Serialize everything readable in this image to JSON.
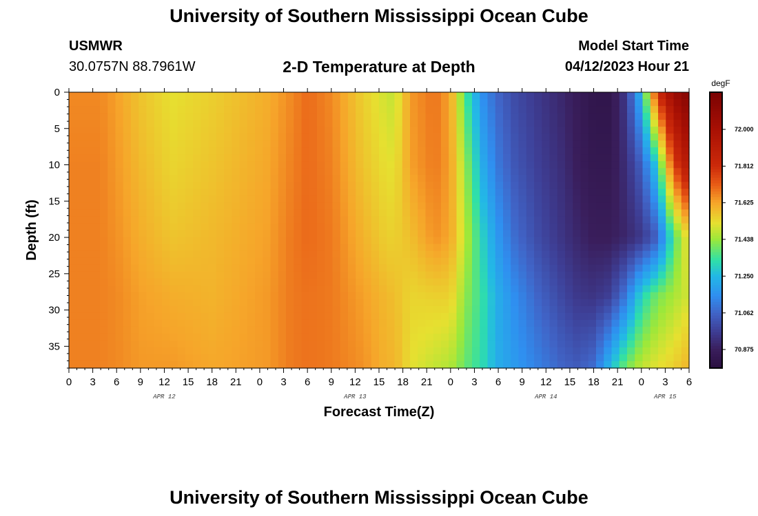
{
  "header": {
    "title": "University of Southern Mississippi Ocean Cube",
    "station": "USMWR",
    "coords": "30.0757N  88.7961W",
    "subtitle": "2-D Temperature at Depth",
    "run_label": "Model Start Time",
    "run_time": "04/12/2023 Hour 21"
  },
  "footer": {
    "title": "University of Southern Mississippi Ocean Cube"
  },
  "chart_data": {
    "type": "heatmap",
    "title": "2-D Temperature at Depth",
    "xlabel": "Forecast Time(Z)",
    "ylabel": "Depth (ft)",
    "x_range_hours": [
      0,
      78
    ],
    "y_range": [
      0,
      38
    ],
    "y_inverted": true,
    "x_ticks": [
      "0",
      "3",
      "6",
      "9",
      "12",
      "15",
      "18",
      "21",
      "0",
      "3",
      "6",
      "9",
      "12",
      "15",
      "18",
      "21",
      "0",
      "3",
      "6",
      "9",
      "12",
      "15",
      "18",
      "21",
      "0",
      "3",
      "6"
    ],
    "y_ticks": [
      0,
      5,
      10,
      15,
      20,
      25,
      30,
      35
    ],
    "date_labels": [
      {
        "label": "APR 12",
        "hour": 12
      },
      {
        "label": "APR 13",
        "hour": 36
      },
      {
        "label": "APR 14",
        "hour": 60
      },
      {
        "label": "APR 15",
        "hour": 75
      }
    ],
    "colorbar": {
      "unit": "degF",
      "range": [
        70.78,
        72.19
      ],
      "ticks": [
        "72.000",
        "71.812",
        "71.625",
        "71.438",
        "71.250",
        "71.062",
        "70.875"
      ],
      "tick_values": [
        72.0,
        71.812,
        71.625,
        71.438,
        71.25,
        71.062,
        70.875
      ],
      "stops": [
        {
          "value": 70.78,
          "color": "#2a1040"
        },
        {
          "value": 70.875,
          "color": "#3a1e5c"
        },
        {
          "value": 70.97,
          "color": "#3e3f96"
        },
        {
          "value": 71.062,
          "color": "#4065c8"
        },
        {
          "value": 71.15,
          "color": "#2f8ff0"
        },
        {
          "value": 71.25,
          "color": "#23b8e6"
        },
        {
          "value": 71.33,
          "color": "#2fe0a8"
        },
        {
          "value": 71.438,
          "color": "#9ce83a"
        },
        {
          "value": 71.52,
          "color": "#e6e030"
        },
        {
          "value": 71.625,
          "color": "#f6a52a"
        },
        {
          "value": 71.72,
          "color": "#e85a16"
        },
        {
          "value": 71.812,
          "color": "#cc2a0a"
        },
        {
          "value": 72.0,
          "color": "#a81004"
        },
        {
          "value": 72.19,
          "color": "#7a0303"
        }
      ]
    },
    "temperature_profile": {
      "hours": [
        0,
        4,
        6,
        9,
        13,
        18,
        25,
        28,
        30,
        33,
        37,
        40,
        41,
        43,
        46,
        48,
        50,
        52,
        54,
        56,
        59,
        62,
        64,
        66,
        68,
        70,
        72,
        74,
        76,
        78
      ],
      "depths": [
        0,
        10,
        20,
        28,
        38
      ],
      "values": [
        [
          71.66,
          71.67,
          71.67,
          71.67,
          71.67
        ],
        [
          71.66,
          71.67,
          71.67,
          71.67,
          71.67
        ],
        [
          71.63,
          71.64,
          71.65,
          71.66,
          71.66
        ],
        [
          71.57,
          71.59,
          71.61,
          71.63,
          71.64
        ],
        [
          71.52,
          71.54,
          71.57,
          71.61,
          71.64
        ],
        [
          71.55,
          71.57,
          71.59,
          71.6,
          71.62
        ],
        [
          71.61,
          71.62,
          71.63,
          71.64,
          71.64
        ],
        [
          71.66,
          71.67,
          71.68,
          71.68,
          71.68
        ],
        [
          71.7,
          71.7,
          71.7,
          71.69,
          71.69
        ],
        [
          71.66,
          71.67,
          71.68,
          71.68,
          71.68
        ],
        [
          71.55,
          71.57,
          71.6,
          71.63,
          71.65
        ],
        [
          71.49,
          71.52,
          71.55,
          71.59,
          71.6
        ],
        [
          71.48,
          71.52,
          71.55,
          71.58,
          71.6
        ],
        [
          71.64,
          71.63,
          71.58,
          71.54,
          71.52
        ],
        [
          71.69,
          71.68,
          71.65,
          71.55,
          71.48
        ],
        [
          71.62,
          71.63,
          71.62,
          71.55,
          71.46
        ],
        [
          71.34,
          71.42,
          71.46,
          71.42,
          71.38
        ],
        [
          71.15,
          71.22,
          71.3,
          71.33,
          71.32
        ],
        [
          71.06,
          71.1,
          71.17,
          71.22,
          71.22
        ],
        [
          71.0,
          71.03,
          71.08,
          71.15,
          71.18
        ],
        [
          70.95,
          70.97,
          71.0,
          71.06,
          71.12
        ],
        [
          70.9,
          70.92,
          70.94,
          70.99,
          71.06
        ],
        [
          70.86,
          70.87,
          70.9,
          70.95,
          71.04
        ],
        [
          70.82,
          70.84,
          70.87,
          70.94,
          71.08
        ],
        [
          70.82,
          70.84,
          70.87,
          70.97,
          71.25
        ],
        [
          70.95,
          70.92,
          70.9,
          71.1,
          71.4
        ],
        [
          71.25,
          71.05,
          70.95,
          71.3,
          71.48
        ],
        [
          71.8,
          71.3,
          71.05,
          71.4,
          71.52
        ],
        [
          72.05,
          71.75,
          71.35,
          71.45,
          71.55
        ],
        [
          72.15,
          71.95,
          71.55,
          71.5,
          71.6
        ]
      ]
    }
  }
}
